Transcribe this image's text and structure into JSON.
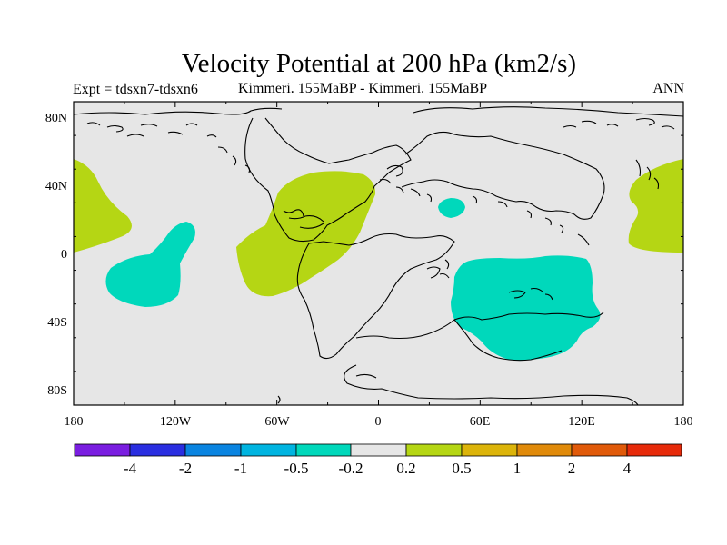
{
  "title": "Velocity Potential at 200 hPa (km2/s)",
  "subtitle_left": "Expt = tdsxn7-tdsxn6",
  "subtitle_center": "Kimmeri. 155MaBP - Kimmeri. 155MaBP",
  "subtitle_right": "ANN",
  "map": {
    "background_color": "#e6e6e6",
    "coastline_color": "#000000",
    "lon_range": [
      -180,
      180
    ],
    "lat_range": [
      -90,
      90
    ],
    "y_tick_labels": [
      "80N",
      "40N",
      "0",
      "40S",
      "80S"
    ],
    "x_tick_labels": [
      "180",
      "120W",
      "60W",
      "0",
      "60E",
      "120E",
      "180"
    ]
  },
  "anomaly_regions": [
    {
      "name": "Central North Pacific (west edge)",
      "sign": "positive",
      "color": "#b5d614"
    },
    {
      "name": "East North Pacific",
      "sign": "negative",
      "color": "#00d8bb"
    },
    {
      "name": "Central America",
      "sign": "positive",
      "color": "#b5d614"
    },
    {
      "name": "Mediterranean / Tethys",
      "sign": "negative",
      "color": "#00d8bb"
    },
    {
      "name": "Southern Africa / Indian Ocean",
      "sign": "negative",
      "color": "#00d8bb"
    },
    {
      "name": "West Pacific (east edge)",
      "sign": "positive",
      "color": "#b5d614"
    }
  ],
  "colorbar": {
    "colors": [
      "#7a1ee0",
      "#2a2ee0",
      "#0a84e0",
      "#00b4e0",
      "#00d8bb",
      "#e6e6e6",
      "#b5d614",
      "#dcb40a",
      "#e08a0a",
      "#e05a0a",
      "#e62a0a",
      "#e60a0a"
    ],
    "labels": [
      "-4",
      "-2",
      "-1",
      "-0.5",
      "-0.2",
      "0.2",
      "0.5",
      "1",
      "2",
      "4"
    ]
  }
}
